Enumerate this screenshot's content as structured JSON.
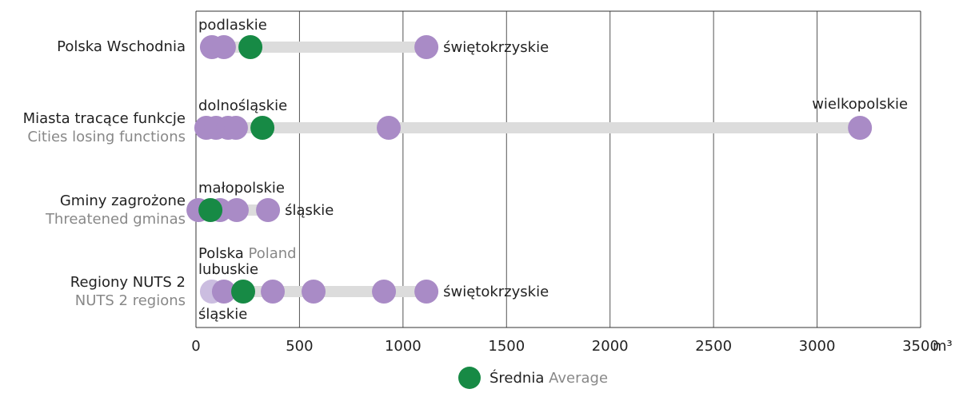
{
  "chart_data": {
    "type": "dotplot",
    "x_label": "m³",
    "xlim": [
      0,
      3500
    ],
    "xticks": [
      0,
      500,
      1000,
      1500,
      2000,
      2500,
      3000,
      3500
    ],
    "grid": true,
    "color": "#a98bc6",
    "mean_color": "#178a45",
    "national_color": "#cbbde0",
    "range_color": "#dcdcdc",
    "legend": {
      "label": "Średnia",
      "label_en": "Average"
    },
    "rows": [
      {
        "label": "Polska Wschodnia",
        "values": [
          77,
          135,
          1113
        ],
        "mean": 263,
        "annotations": [
          {
            "text": "podlaskie",
            "at": "above-start"
          },
          {
            "text": "świętokrzyskie",
            "at": "right-end"
          }
        ]
      },
      {
        "label": "Miasta tracące funkcje",
        "sublabel": "Cities losing functions",
        "values": [
          50,
          97,
          155,
          193,
          931,
          3207
        ],
        "mean": 321,
        "annotations": [
          {
            "text": "dolnośląskie",
            "at": "above-start"
          },
          {
            "text": "wielkopolskie",
            "at": "above-end"
          }
        ]
      },
      {
        "label": "Gminy zagrożone",
        "sublabel": "Threatened gminas",
        "values": [
          12,
          116,
          197,
          348
        ],
        "mean": 70,
        "annotations": [
          {
            "text": "małopolskie",
            "at": "above-start"
          },
          {
            "text": "śląskie",
            "at": "right-end"
          }
        ]
      },
      {
        "label": "Regiony NUTS 2",
        "sublabel": "NUTS 2 regions",
        "values": [
          135,
          371,
          568,
          908,
          1113
        ],
        "mean": 228,
        "national": {
          "value": 77,
          "label": "Polska",
          "label_en": "Poland"
        },
        "annotations": [
          {
            "text": "lubuskie",
            "at": "above-start"
          },
          {
            "text": "śląskie",
            "at": "below-start"
          },
          {
            "text": "świętokrzyskie",
            "at": "right-end"
          }
        ]
      }
    ]
  }
}
